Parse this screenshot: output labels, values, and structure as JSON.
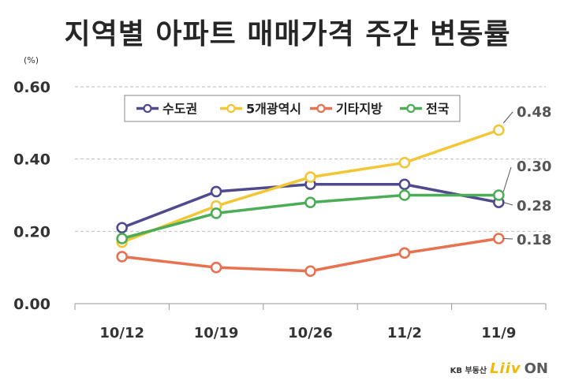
{
  "title": "지역별 아파트 매매가격 주간 변동률",
  "brand": {
    "kb": "KB 부동산",
    "liiv": "Liiv",
    "on": "ON"
  },
  "chart_data": {
    "type": "line",
    "title": "지역별 아파트 매매가격 주간 변동률",
    "unit": "(%)",
    "categories": [
      "10/12",
      "10/19",
      "10/26",
      "11/2",
      "11/9"
    ],
    "ylim": [
      0,
      0.6
    ],
    "yticks": [
      "0.00",
      "0.20",
      "0.40",
      "0.60"
    ],
    "grid": true,
    "legend": "top",
    "series": [
      {
        "name": "수도권",
        "color": "#4f4a8f",
        "values": [
          0.21,
          0.31,
          0.33,
          0.33,
          0.28
        ],
        "end_label": "0.28"
      },
      {
        "name": "5개광역시",
        "color": "#f2c634",
        "values": [
          0.17,
          0.27,
          0.35,
          0.39,
          0.48
        ],
        "end_label": "0.48"
      },
      {
        "name": "기타지방",
        "color": "#e8714f",
        "values": [
          0.13,
          0.1,
          0.09,
          0.14,
          0.18
        ],
        "end_label": "0.18"
      },
      {
        "name": "전국",
        "color": "#4cad56",
        "values": [
          0.18,
          0.25,
          0.28,
          0.3,
          0.3
        ],
        "end_label": "0.30"
      }
    ]
  }
}
